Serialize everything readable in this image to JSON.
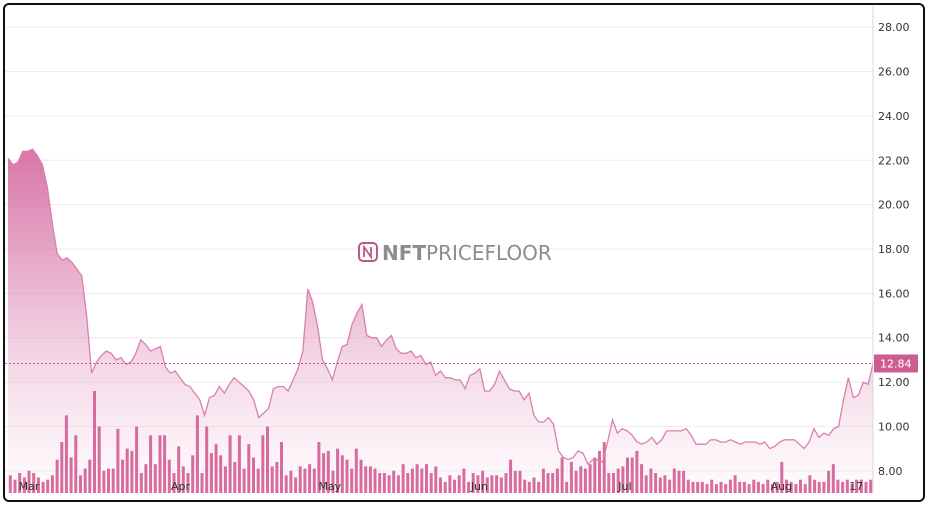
{
  "watermark": {
    "brand_bold": "NFT",
    "brand_light": "PRICEFLOOR"
  },
  "colors": {
    "line": "#d980ae",
    "area_top": "#d66fa3",
    "area_bottom": "#fbeef5",
    "volume": "#d45c93",
    "last_price_box": "#cc5d92",
    "grid": "#ececec"
  },
  "chart_data": {
    "type": "area",
    "title": "",
    "xlabel": "",
    "ylabel": "",
    "ylim": [
      7.0,
      29.0
    ],
    "y_ticks": [
      "28.00",
      "26.00",
      "24.00",
      "22.00",
      "20.00",
      "18.00",
      "16.00",
      "14.00",
      "12.00",
      "10.00",
      "8.00"
    ],
    "x_ticks": [
      {
        "label": "Mar",
        "day": 4
      },
      {
        "label": "Apr",
        "day": 35
      },
      {
        "label": "May",
        "day": 65
      },
      {
        "label": "Jun",
        "day": 96
      },
      {
        "label": "Jul",
        "day": 126
      },
      {
        "label": "Aug",
        "day": 157
      },
      {
        "label": "17",
        "day": 173
      }
    ],
    "last_price": {
      "value": 12.84,
      "label": "12.84"
    },
    "series": [
      {
        "name": "",
        "type": "area",
        "points": [
          [
            0,
            22.1
          ],
          [
            1,
            21.8
          ],
          [
            2,
            21.9
          ],
          [
            3,
            22.4
          ],
          [
            4,
            22.4
          ],
          [
            5,
            22.5
          ],
          [
            6,
            22.2
          ],
          [
            7,
            21.8
          ],
          [
            8,
            20.8
          ],
          [
            9,
            19.2
          ],
          [
            10,
            17.8
          ],
          [
            11,
            17.5
          ],
          [
            12,
            17.6
          ],
          [
            13,
            17.4
          ],
          [
            14,
            17.1
          ],
          [
            15,
            16.8
          ],
          [
            16,
            15.0
          ],
          [
            17,
            12.4
          ],
          [
            18,
            12.9
          ],
          [
            19,
            13.2
          ],
          [
            20,
            13.4
          ],
          [
            21,
            13.3
          ],
          [
            22,
            13.0
          ],
          [
            23,
            13.1
          ],
          [
            24,
            12.8
          ],
          [
            25,
            12.9
          ],
          [
            26,
            13.3
          ],
          [
            27,
            13.9
          ],
          [
            28,
            13.7
          ],
          [
            29,
            13.4
          ],
          [
            30,
            13.5
          ],
          [
            31,
            13.6
          ],
          [
            32,
            12.7
          ],
          [
            33,
            12.4
          ],
          [
            34,
            12.5
          ],
          [
            35,
            12.2
          ],
          [
            36,
            11.9
          ],
          [
            37,
            11.8
          ],
          [
            38,
            11.5
          ],
          [
            39,
            11.2
          ],
          [
            40,
            10.5
          ],
          [
            41,
            11.3
          ],
          [
            42,
            11.4
          ],
          [
            43,
            11.8
          ],
          [
            44,
            11.5
          ],
          [
            45,
            11.9
          ],
          [
            46,
            12.2
          ],
          [
            47,
            12.0
          ],
          [
            48,
            11.8
          ],
          [
            49,
            11.6
          ],
          [
            50,
            11.2
          ],
          [
            51,
            10.4
          ],
          [
            52,
            10.6
          ],
          [
            53,
            10.8
          ],
          [
            54,
            11.7
          ],
          [
            55,
            11.8
          ],
          [
            56,
            11.8
          ],
          [
            57,
            11.6
          ],
          [
            58,
            12.1
          ],
          [
            59,
            12.6
          ],
          [
            60,
            13.4
          ],
          [
            61,
            16.2
          ],
          [
            62,
            15.6
          ],
          [
            63,
            14.5
          ],
          [
            64,
            13.0
          ],
          [
            65,
            12.6
          ],
          [
            66,
            12.1
          ],
          [
            67,
            12.9
          ],
          [
            68,
            13.6
          ],
          [
            69,
            13.7
          ],
          [
            70,
            14.6
          ],
          [
            71,
            15.1
          ],
          [
            72,
            15.5
          ],
          [
            73,
            14.1
          ],
          [
            74,
            14.0
          ],
          [
            75,
            14.0
          ],
          [
            76,
            13.6
          ],
          [
            77,
            13.9
          ],
          [
            78,
            14.1
          ],
          [
            79,
            13.5
          ],
          [
            80,
            13.3
          ],
          [
            81,
            13.3
          ],
          [
            82,
            13.4
          ],
          [
            83,
            13.1
          ],
          [
            84,
            13.2
          ],
          [
            85,
            12.8
          ],
          [
            86,
            12.9
          ],
          [
            87,
            12.3
          ],
          [
            88,
            12.5
          ],
          [
            89,
            12.2
          ],
          [
            90,
            12.2
          ],
          [
            91,
            12.1
          ],
          [
            92,
            12.1
          ],
          [
            93,
            11.7
          ],
          [
            94,
            12.3
          ],
          [
            95,
            12.4
          ],
          [
            96,
            12.6
          ],
          [
            97,
            11.6
          ],
          [
            98,
            11.6
          ],
          [
            99,
            11.9
          ],
          [
            100,
            12.5
          ],
          [
            101,
            12.1
          ],
          [
            102,
            11.7
          ],
          [
            103,
            11.6
          ],
          [
            104,
            11.6
          ],
          [
            105,
            11.2
          ],
          [
            106,
            11.5
          ],
          [
            107,
            10.5
          ],
          [
            108,
            10.2
          ],
          [
            109,
            10.2
          ],
          [
            110,
            10.4
          ],
          [
            111,
            10.1
          ],
          [
            112,
            8.9
          ],
          [
            113,
            8.6
          ],
          [
            114,
            8.5
          ],
          [
            115,
            8.6
          ],
          [
            116,
            8.9
          ],
          [
            117,
            8.8
          ],
          [
            118,
            8.3
          ],
          [
            119,
            8.5
          ],
          [
            120,
            8.5
          ],
          [
            121,
            8.4
          ],
          [
            122,
            9.3
          ],
          [
            123,
            10.3
          ],
          [
            124,
            9.7
          ],
          [
            125,
            9.9
          ],
          [
            126,
            9.8
          ],
          [
            127,
            9.6
          ],
          [
            128,
            9.3
          ],
          [
            129,
            9.2
          ],
          [
            130,
            9.3
          ],
          [
            131,
            9.5
          ],
          [
            132,
            9.2
          ],
          [
            133,
            9.4
          ],
          [
            134,
            9.8
          ],
          [
            135,
            9.8
          ],
          [
            136,
            9.8
          ],
          [
            137,
            9.8
          ],
          [
            138,
            9.9
          ],
          [
            139,
            9.6
          ],
          [
            140,
            9.2
          ],
          [
            141,
            9.2
          ],
          [
            142,
            9.2
          ],
          [
            143,
            9.4
          ],
          [
            144,
            9.4
          ],
          [
            145,
            9.3
          ],
          [
            146,
            9.3
          ],
          [
            147,
            9.4
          ],
          [
            148,
            9.3
          ],
          [
            149,
            9.2
          ],
          [
            150,
            9.3
          ],
          [
            151,
            9.3
          ],
          [
            152,
            9.3
          ],
          [
            153,
            9.2
          ],
          [
            154,
            9.3
          ],
          [
            155,
            9.0
          ],
          [
            156,
            9.1
          ],
          [
            157,
            9.3
          ],
          [
            158,
            9.4
          ],
          [
            159,
            9.4
          ],
          [
            160,
            9.4
          ],
          [
            161,
            9.2
          ],
          [
            162,
            9.0
          ],
          [
            163,
            9.3
          ],
          [
            164,
            9.9
          ],
          [
            165,
            9.5
          ],
          [
            166,
            9.7
          ],
          [
            167,
            9.6
          ],
          [
            168,
            9.9
          ],
          [
            169,
            10.0
          ],
          [
            170,
            11.2
          ],
          [
            171,
            12.2
          ],
          [
            172,
            11.3
          ],
          [
            173,
            11.4
          ],
          [
            174,
            12.0
          ],
          [
            175,
            11.9
          ],
          [
            176,
            12.84
          ]
        ]
      },
      {
        "name": "",
        "type": "bar",
        "unit_note_hidden": "",
        "values": [
          7.8,
          7.6,
          7.9,
          7.7,
          8.0,
          7.9,
          7.7,
          7.5,
          7.6,
          7.8,
          8.5,
          9.3,
          10.5,
          8.6,
          9.6,
          7.8,
          8.1,
          8.5,
          11.6,
          10.0,
          8.0,
          8.1,
          8.1,
          9.9,
          8.5,
          9.0,
          8.9,
          10.0,
          7.9,
          8.3,
          9.6,
          8.3,
          9.6,
          9.6,
          8.5,
          7.9,
          9.1,
          8.2,
          7.9,
          8.7,
          10.5,
          7.9,
          10.0,
          8.8,
          9.2,
          8.7,
          8.2,
          9.6,
          8.4,
          9.6,
          8.1,
          9.2,
          8.6,
          8.1,
          9.6,
          10.0,
          8.2,
          8.4,
          9.3,
          7.8,
          8.0,
          7.7,
          8.2,
          8.1,
          8.3,
          8.1,
          9.3,
          8.8,
          8.9,
          8.0,
          9.0,
          8.7,
          8.5,
          8.1,
          9.0,
          8.5,
          8.2,
          8.2,
          8.1,
          7.9,
          7.9,
          7.8,
          8.0,
          7.8,
          8.3,
          7.9,
          8.1,
          8.3,
          8.1,
          8.3,
          7.9,
          8.2,
          7.7,
          7.5,
          7.8,
          7.6,
          7.8,
          8.1,
          7.5,
          7.9,
          7.8,
          8.0,
          7.7,
          7.8,
          7.8,
          7.7,
          7.9,
          8.5,
          8.0,
          8.0,
          7.6,
          7.5,
          7.7,
          7.5,
          8.1,
          7.9,
          7.9,
          8.1,
          8.6,
          7.5,
          8.4,
          8.0,
          8.2,
          8.1,
          8.3,
          8.6,
          8.9,
          9.3,
          7.9,
          7.9,
          8.1,
          8.2,
          8.6,
          8.6,
          8.9,
          8.3,
          7.8,
          8.1,
          7.9,
          7.7,
          7.8,
          7.6,
          8.1,
          8.0,
          8.0,
          7.6,
          7.5,
          7.5,
          7.5,
          7.4,
          7.6,
          7.4,
          7.5,
          7.4,
          7.6,
          7.8,
          7.5,
          7.5,
          7.4,
          7.6,
          7.5,
          7.4,
          7.6,
          7.4,
          7.5,
          8.4,
          7.6,
          7.5,
          7.4,
          7.6,
          7.4,
          7.8,
          7.6,
          7.5,
          7.5,
          8.0,
          8.3,
          7.6,
          7.5,
          7.6,
          7.4,
          7.6,
          7.6,
          7.5,
          7.6
        ]
      }
    ],
    "grid": true,
    "legend": "none"
  }
}
